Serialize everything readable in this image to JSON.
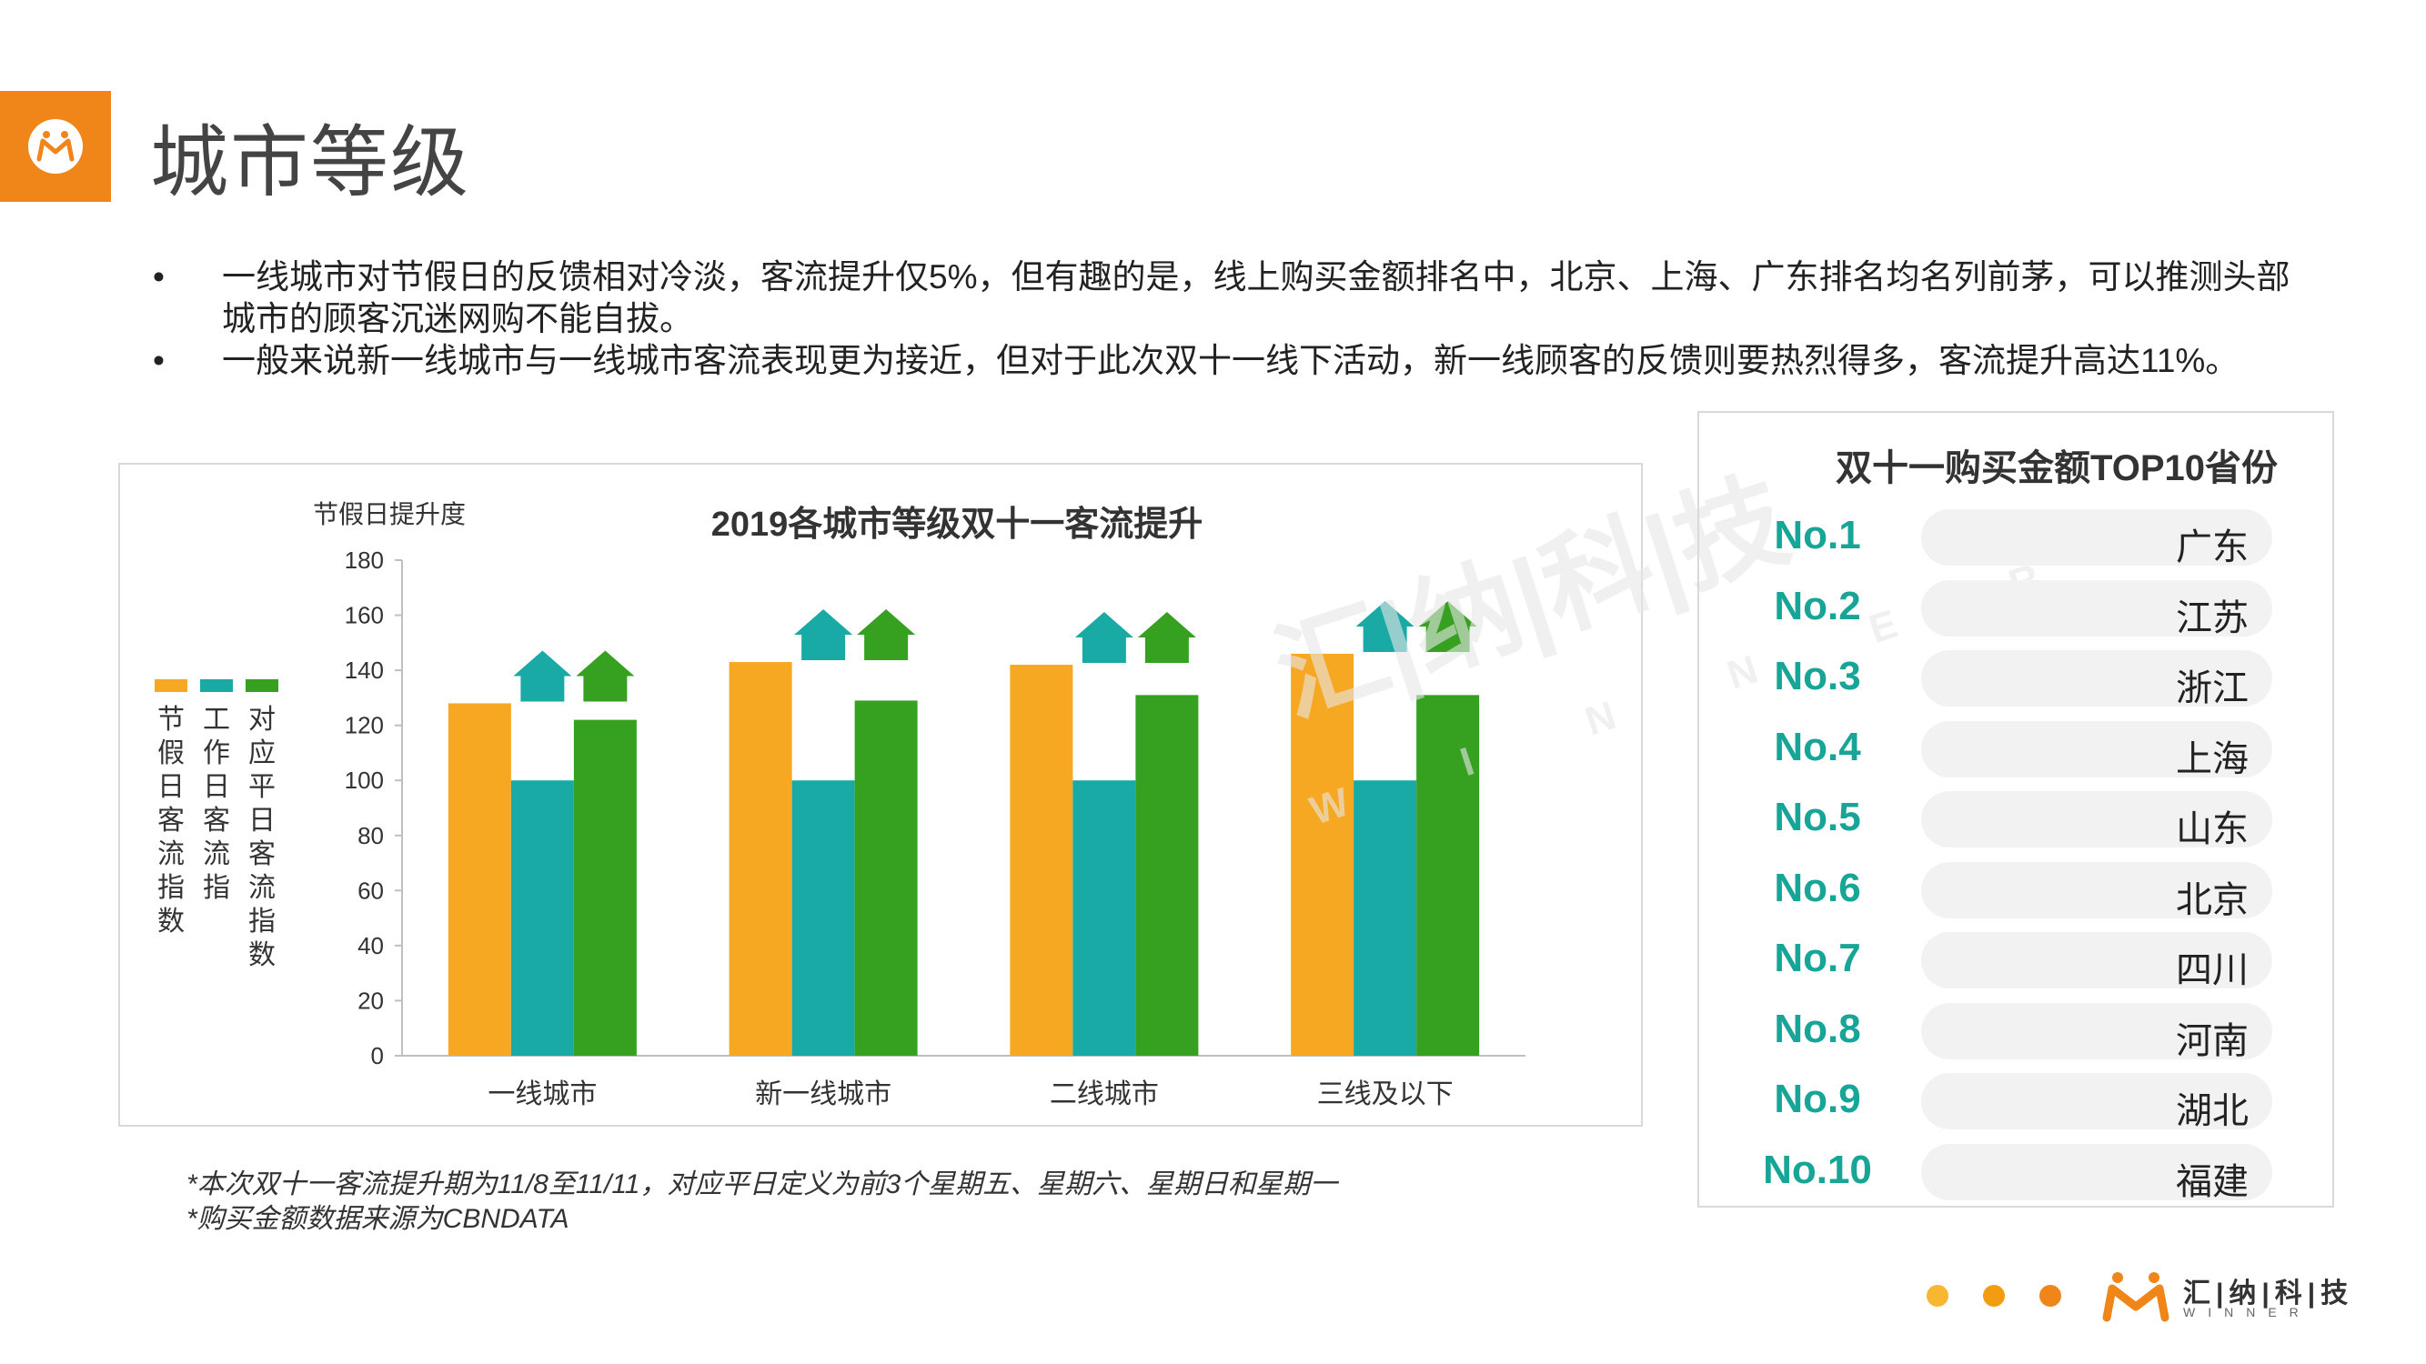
{
  "header": {
    "title": "城市等级"
  },
  "bullets": [
    "一线城市对节假日的反馈相对冷淡，客流提升仅5%，但有趣的是，线上购买金额排名中，北京、上海、广东排名均名列前茅，可以推测头部城市的顾客沉迷网购不能自拔。",
    "一般来说新一线城市与一线城市客流表现更为接近，但对于此次双十一线下活动，新一线顾客的反馈则要热烈得多，客流提升高达11%。"
  ],
  "bullet_symbol": "•",
  "chart_data": {
    "type": "bar",
    "title": "2019各城市等级双十一客流提升",
    "ylabel": "节假日提升度",
    "xlabel": "",
    "ylim": [
      0,
      180
    ],
    "yticks": [
      0,
      20,
      40,
      60,
      80,
      100,
      120,
      140,
      160,
      180
    ],
    "categories": [
      "一线城市",
      "新一线城市",
      "二线城市",
      "三线及以下"
    ],
    "series": [
      {
        "name": "节假日客流指数",
        "color": "#f7a823",
        "values": [
          128,
          143,
          142,
          146
        ]
      },
      {
        "name": "工作日客流指",
        "color": "#1aaaa5",
        "values": [
          100,
          100,
          100,
          100
        ]
      },
      {
        "name": "对应平日客流指数",
        "color": "#36a021",
        "values": [
          122,
          129,
          131,
          131
        ]
      }
    ],
    "legend_position": "left",
    "grid": false
  },
  "notes": [
    "*本次双十一客流提升期为11/8至11/11，对应平日定义为前3个星期五、星期六、星期日和星期一",
    "*购买金额数据来源为CBNDATA"
  ],
  "ranking": {
    "title": "双十一购买金额TOP10省份",
    "items": [
      {
        "rank": "No.1",
        "province": "广东"
      },
      {
        "rank": "No.2",
        "province": "江苏"
      },
      {
        "rank": "No.3",
        "province": "浙江"
      },
      {
        "rank": "No.4",
        "province": "上海"
      },
      {
        "rank": "No.5",
        "province": "山东"
      },
      {
        "rank": "No.6",
        "province": "北京"
      },
      {
        "rank": "No.7",
        "province": "四川"
      },
      {
        "rank": "No.8",
        "province": "河南"
      },
      {
        "rank": "No.9",
        "province": "湖北"
      },
      {
        "rank": "No.10",
        "province": "福建"
      }
    ]
  },
  "footer": {
    "brand_name": "汇|纳|科|技",
    "brand_sub": "WINNER",
    "dot_colors": [
      "#f7b731",
      "#f39c12",
      "#f08519"
    ]
  },
  "watermark": {
    "text": "汇|纳|科|技",
    "sub": "W I N N E R"
  },
  "colors": {
    "accent": "#f08519",
    "rank_number": "#17a597"
  }
}
